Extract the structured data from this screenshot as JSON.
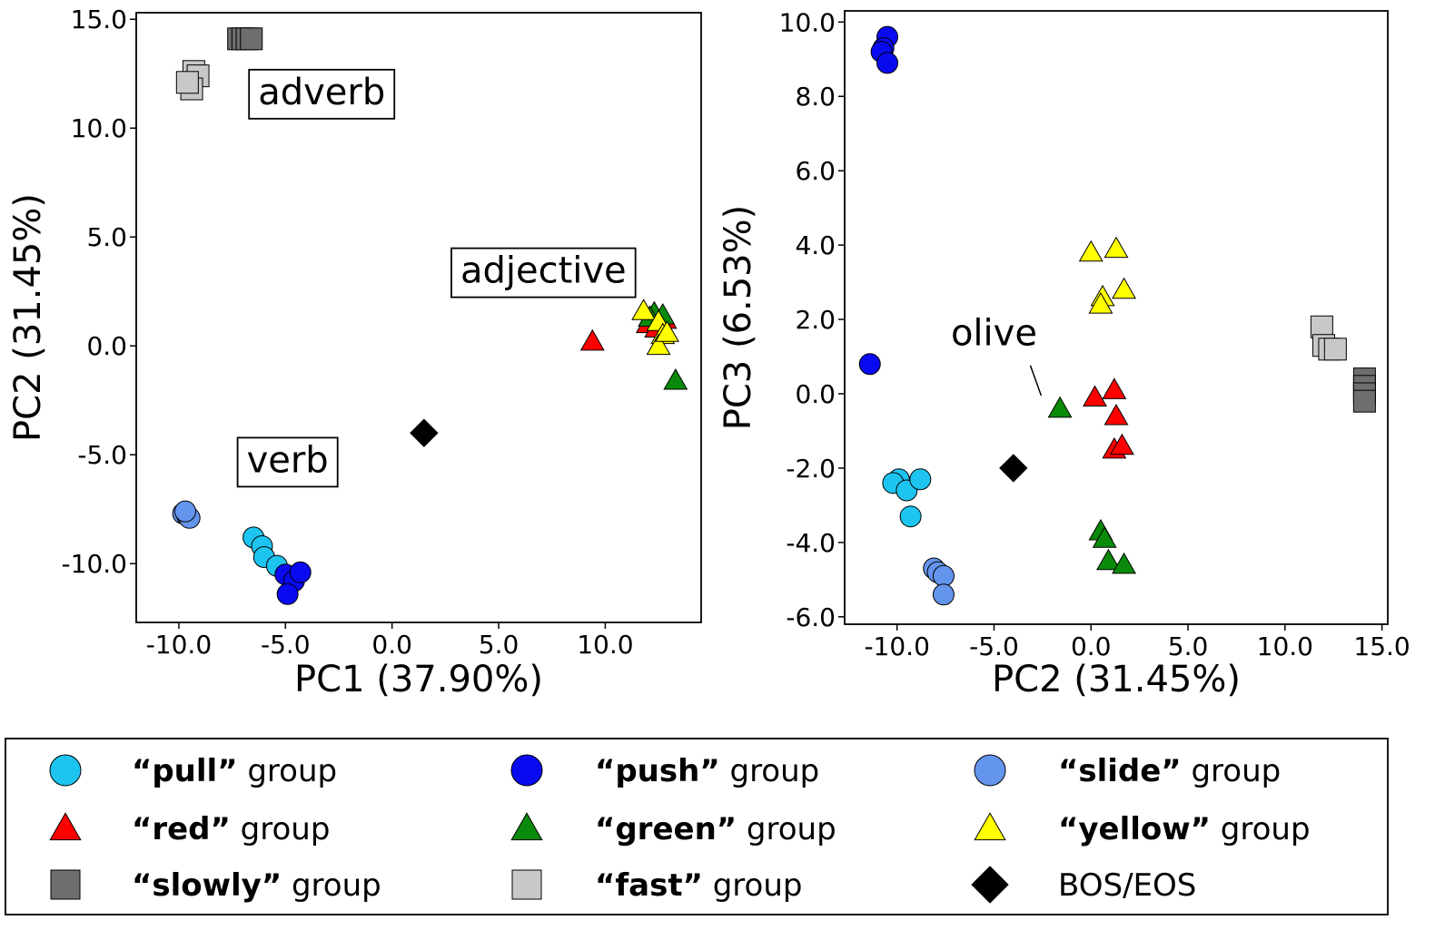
{
  "colors": {
    "pull": "#1ec4f0",
    "push": "#0a0af0",
    "slide": "#6495ed",
    "red": "#ff0000",
    "green": "#0a8a0a",
    "yellow": "#ffff00",
    "slowly": "#6e6e6e",
    "fast": "#c8c8c8",
    "bos": "#000000"
  },
  "chart_data": [
    {
      "type": "scatter",
      "xlabel": "PC1 (37.90%)",
      "ylabel": "PC2 (31.45%)",
      "xlim": [
        -12.0,
        14.5
      ],
      "ylim": [
        -12.7,
        15.3
      ],
      "xticks": [
        -10,
        -5,
        0,
        5,
        10
      ],
      "yticks": [
        -10,
        -5,
        0,
        5,
        10,
        15
      ],
      "xtick_labels": [
        "-10.0",
        "-5.0",
        "0.0",
        "5.0",
        "10.0"
      ],
      "ytick_labels": [
        "-10.0",
        "-5.0",
        "0.0",
        "5.0",
        "10.0",
        "15.0"
      ],
      "annotations": [
        {
          "text": "adverb",
          "x": -3.3,
          "y": 11.1
        },
        {
          "text": "adjective",
          "x": 7.1,
          "y": 2.9
        },
        {
          "text": "verb",
          "x": -4.9,
          "y": -5.8
        }
      ],
      "series": [
        {
          "group": "pull",
          "marker": "circle",
          "points": [
            [
              -6.5,
              -8.8
            ],
            [
              -6.1,
              -9.2
            ],
            [
              -6.0,
              -9.7
            ],
            [
              -5.4,
              -10.1
            ]
          ]
        },
        {
          "group": "push",
          "marker": "circle",
          "points": [
            [
              -5.0,
              -10.5
            ],
            [
              -4.6,
              -10.8
            ],
            [
              -4.3,
              -10.4
            ],
            [
              -4.9,
              -11.4
            ]
          ]
        },
        {
          "group": "slide",
          "marker": "circle",
          "points": [
            [
              -9.8,
              -7.7
            ],
            [
              -9.6,
              -7.8
            ],
            [
              -9.5,
              -7.9
            ],
            [
              -9.7,
              -7.6
            ]
          ]
        },
        {
          "group": "red",
          "marker": "triangle",
          "points": [
            [
              9.4,
              0.2
            ],
            [
              12.0,
              1.0
            ],
            [
              12.4,
              0.8
            ],
            [
              12.8,
              1.2
            ]
          ]
        },
        {
          "group": "green",
          "marker": "triangle",
          "points": [
            [
              13.3,
              -1.6
            ],
            [
              12.3,
              1.5
            ],
            [
              12.7,
              1.4
            ],
            [
              12.1,
              1.3
            ]
          ]
        },
        {
          "group": "yellow",
          "marker": "triangle",
          "points": [
            [
              11.8,
              1.6
            ],
            [
              12.5,
              1.1
            ],
            [
              12.7,
              0.5
            ],
            [
              12.5,
              0.0
            ],
            [
              12.9,
              0.6
            ]
          ]
        },
        {
          "group": "slowly",
          "marker": "square",
          "points": [
            [
              -7.2,
              14.1
            ],
            [
              -7.0,
              14.1
            ],
            [
              -6.8,
              14.1
            ],
            [
              -6.6,
              14.1
            ]
          ]
        },
        {
          "group": "fast",
          "marker": "square",
          "points": [
            [
              -9.3,
              12.6
            ],
            [
              -9.1,
              12.4
            ],
            [
              -9.4,
              11.8
            ],
            [
              -9.6,
              12.1
            ]
          ]
        },
        {
          "group": "bos",
          "marker": "diamond",
          "points": [
            [
              1.5,
              -4.0
            ]
          ]
        }
      ]
    },
    {
      "type": "scatter",
      "xlabel": "PC2 (31.45%)",
      "ylabel": "PC3 (6.53%)",
      "xlim": [
        -12.7,
        15.3
      ],
      "ylim": [
        -6.2,
        10.3
      ],
      "xticks": [
        -10,
        -5,
        0,
        5,
        10,
        15
      ],
      "yticks": [
        -6,
        -4,
        -2,
        0,
        2,
        4,
        6,
        8,
        10
      ],
      "xtick_labels": [
        "-10.0",
        "-5.0",
        "0.0",
        "5.0",
        "10.0",
        "15.0"
      ],
      "ytick_labels": [
        "-6.0",
        "-4.0",
        "-2.0",
        "0.0",
        "2.0",
        "4.0",
        "6.0",
        "8.0",
        "10.0"
      ],
      "annotations": [
        {
          "text": "olive",
          "x": -5.0,
          "y": 1.3,
          "arrow_to": [
            -2.1,
            0.0
          ]
        }
      ],
      "series": [
        {
          "group": "pull",
          "marker": "circle",
          "points": [
            [
              -9.9,
              -2.3
            ],
            [
              -10.2,
              -2.4
            ],
            [
              -9.5,
              -2.6
            ],
            [
              -8.8,
              -2.3
            ],
            [
              -9.3,
              -3.3
            ]
          ]
        },
        {
          "group": "push",
          "marker": "circle",
          "points": [
            [
              -10.5,
              9.6
            ],
            [
              -10.7,
              9.3
            ],
            [
              -10.8,
              9.2
            ],
            [
              -10.5,
              8.9
            ],
            [
              -11.4,
              0.8
            ]
          ]
        },
        {
          "group": "slide",
          "marker": "circle",
          "points": [
            [
              -8.1,
              -4.7
            ],
            [
              -7.9,
              -4.8
            ],
            [
              -7.6,
              -4.9
            ],
            [
              -7.6,
              -5.4
            ]
          ]
        },
        {
          "group": "red",
          "marker": "triangle",
          "points": [
            [
              0.2,
              -0.1
            ],
            [
              1.2,
              0.1
            ],
            [
              1.3,
              -0.6
            ],
            [
              1.2,
              -1.5
            ],
            [
              1.6,
              -1.4
            ]
          ]
        },
        {
          "group": "green",
          "marker": "triangle",
          "points": [
            [
              -1.6,
              -0.4
            ],
            [
              0.5,
              -3.7
            ],
            [
              0.7,
              -3.9
            ],
            [
              0.9,
              -4.5
            ],
            [
              1.7,
              -4.6
            ]
          ]
        },
        {
          "group": "yellow",
          "marker": "triangle",
          "points": [
            [
              0.0,
              3.8
            ],
            [
              1.3,
              3.9
            ],
            [
              0.6,
              2.6
            ],
            [
              0.5,
              2.4
            ],
            [
              1.7,
              2.8
            ]
          ]
        },
        {
          "group": "slowly",
          "marker": "square",
          "points": [
            [
              14.1,
              0.4
            ],
            [
              14.1,
              0.2
            ],
            [
              14.1,
              0.0
            ],
            [
              14.1,
              -0.2
            ]
          ]
        },
        {
          "group": "fast",
          "marker": "square",
          "points": [
            [
              11.9,
              1.8
            ],
            [
              12.0,
              1.3
            ],
            [
              12.3,
              1.2
            ],
            [
              12.6,
              1.2
            ]
          ]
        },
        {
          "group": "bos",
          "marker": "diamond",
          "points": [
            [
              -4.0,
              -2.0
            ]
          ]
        }
      ]
    }
  ],
  "legend": {
    "items": [
      {
        "group": "pull",
        "marker": "circle",
        "bold": "“pull”",
        "rest": " group"
      },
      {
        "group": "push",
        "marker": "circle",
        "bold": "“push”",
        "rest": " group"
      },
      {
        "group": "slide",
        "marker": "circle",
        "bold": "“slide”",
        "rest": " group"
      },
      {
        "group": "red",
        "marker": "triangle",
        "bold": "“red”",
        "rest": " group"
      },
      {
        "group": "green",
        "marker": "triangle",
        "bold": "“green”",
        "rest": " group"
      },
      {
        "group": "yellow",
        "marker": "triangle",
        "bold": "“yellow”",
        "rest": " group"
      },
      {
        "group": "slowly",
        "marker": "square",
        "bold": "“slowly”",
        "rest": " group"
      },
      {
        "group": "fast",
        "marker": "square",
        "bold": "“fast”",
        "rest": " group"
      },
      {
        "group": "bos",
        "marker": "diamond",
        "bold": "",
        "rest": "BOS/EOS"
      }
    ]
  }
}
